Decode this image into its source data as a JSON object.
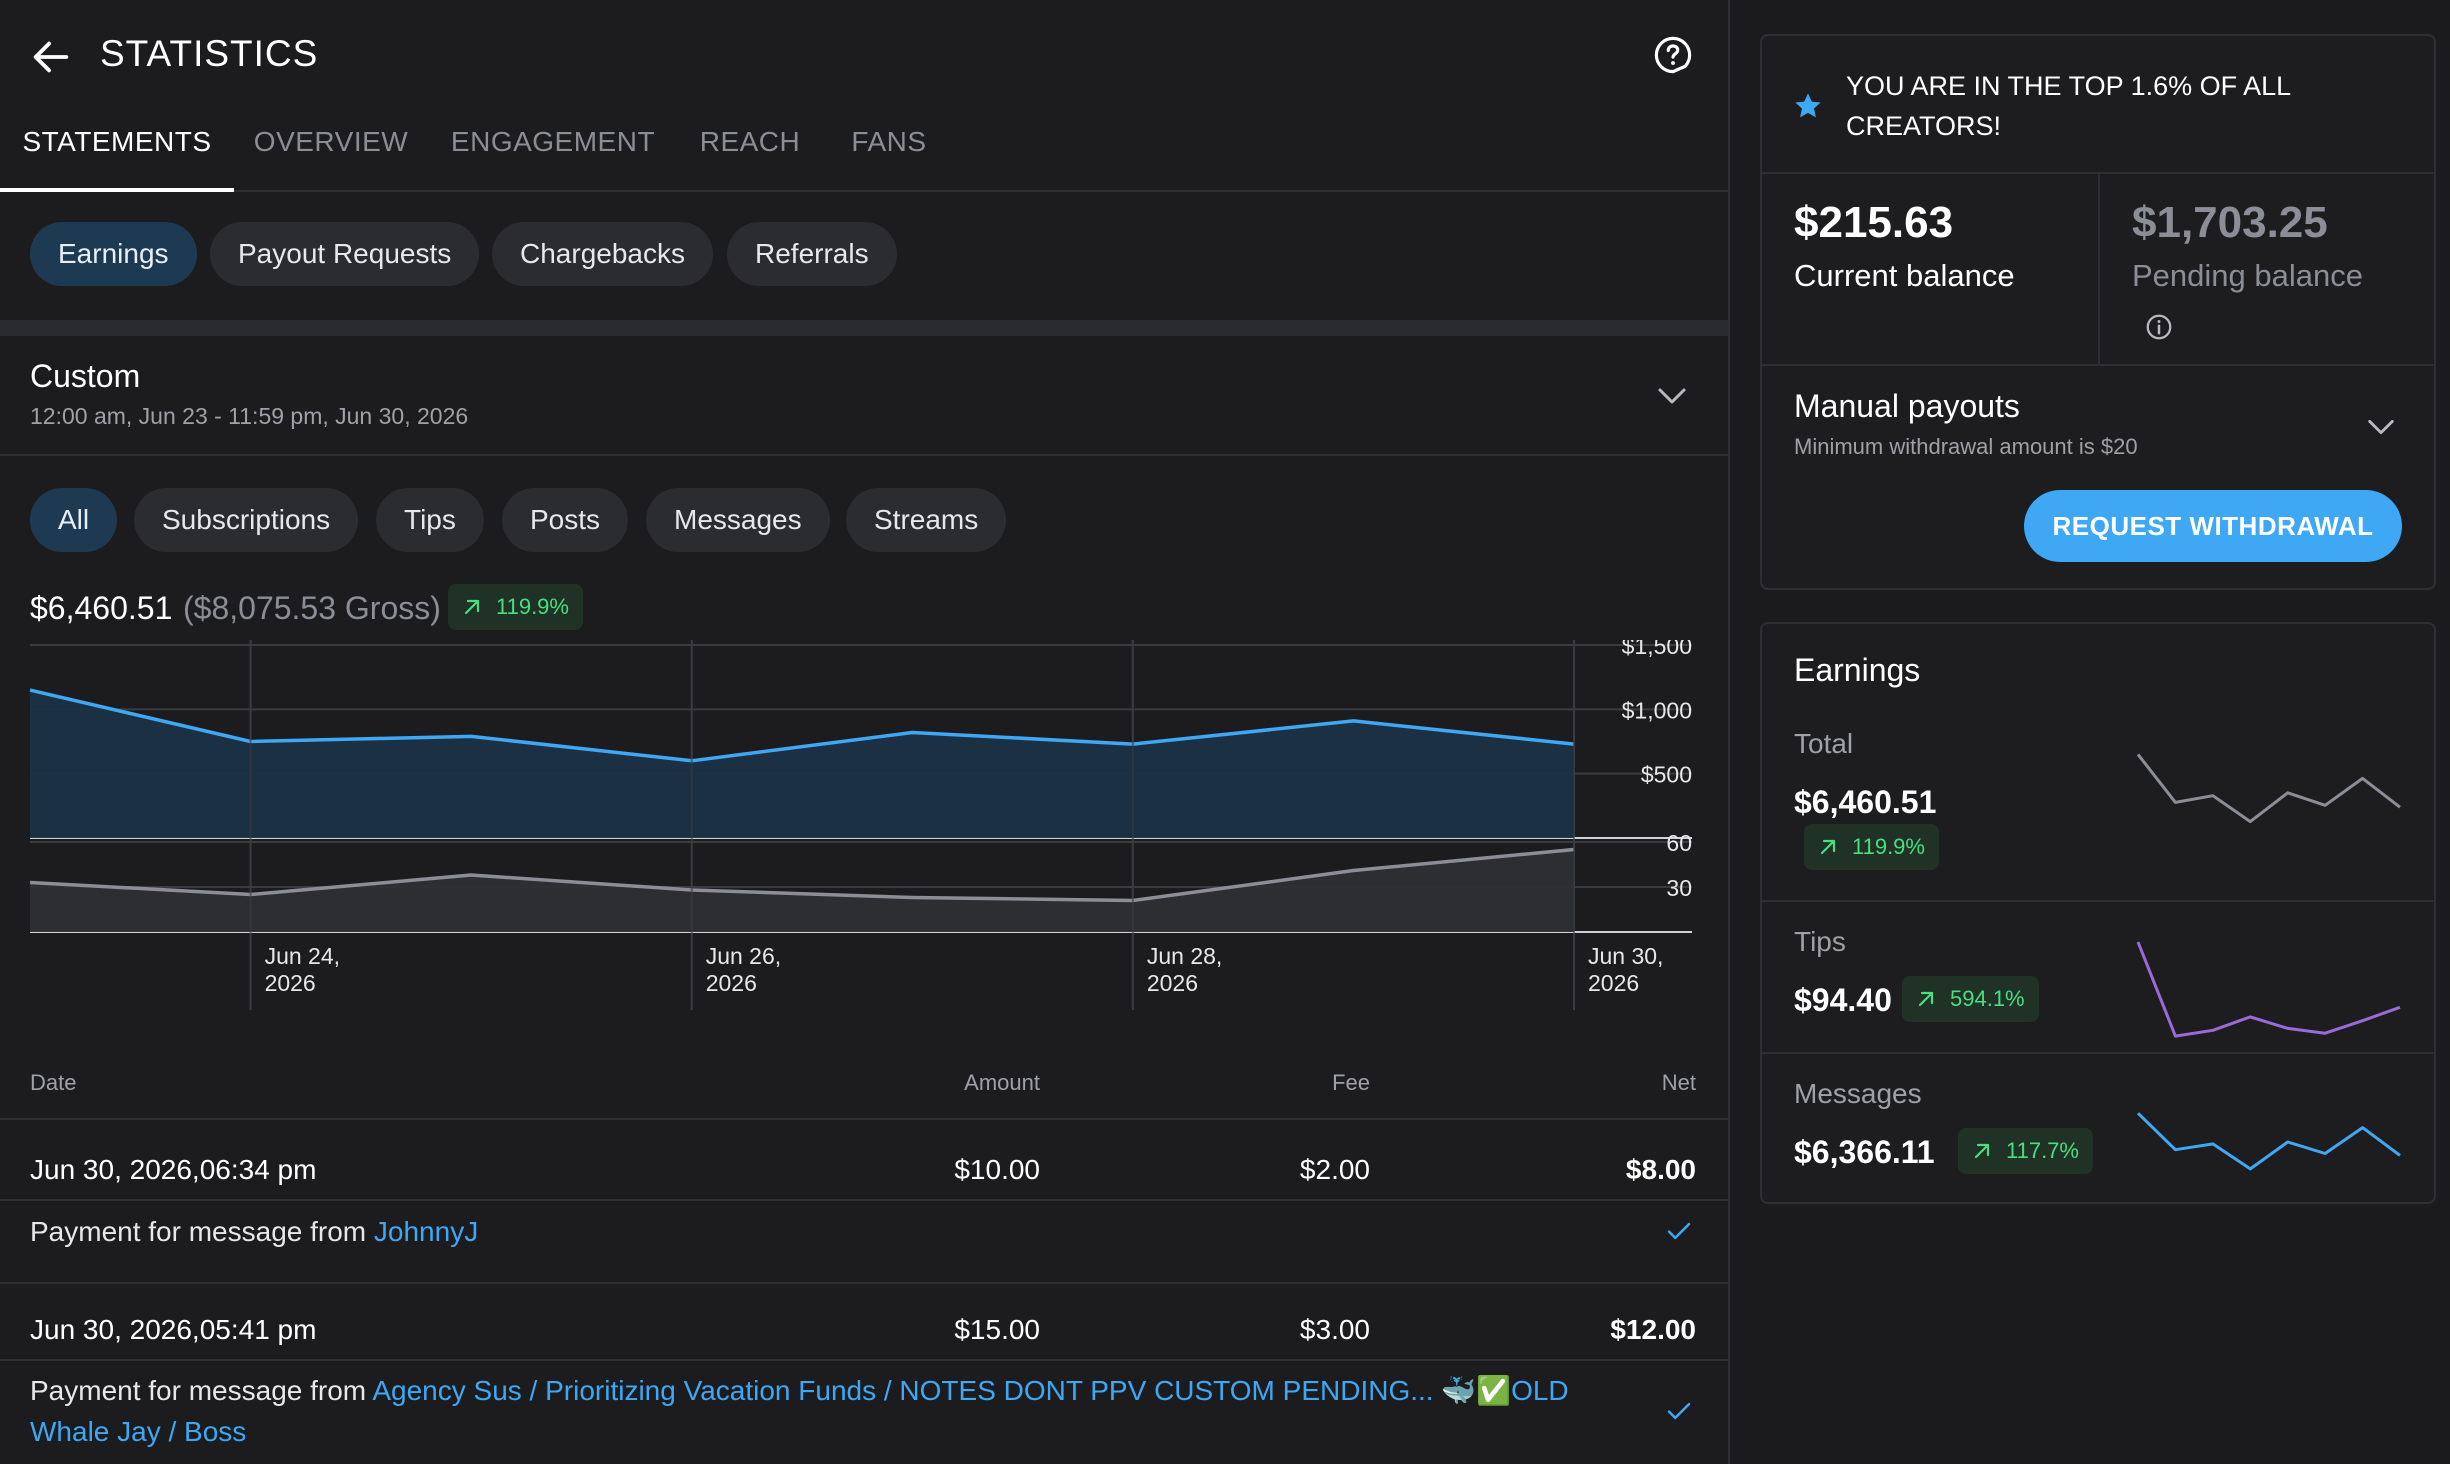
{
  "header": {
    "title": "STATISTICS"
  },
  "tabs": [
    {
      "label": "STATEMENTS",
      "active": true
    },
    {
      "label": "OVERVIEW"
    },
    {
      "label": "ENGAGEMENT"
    },
    {
      "label": "REACH"
    },
    {
      "label": "FANS"
    }
  ],
  "statement_pills": [
    {
      "label": "Earnings",
      "active": true
    },
    {
      "label": "Payout Requests"
    },
    {
      "label": "Chargebacks"
    },
    {
      "label": "Referrals"
    }
  ],
  "range": {
    "title": "Custom",
    "subtitle": "12:00 am, Jun 23 - 11:59 pm, Jun 30, 2026"
  },
  "filter_pills": [
    {
      "label": "All",
      "active": true
    },
    {
      "label": "Subscriptions"
    },
    {
      "label": "Tips"
    },
    {
      "label": "Posts"
    },
    {
      "label": "Messages"
    },
    {
      "label": "Streams"
    }
  ],
  "summary": {
    "net": "$6,460.51",
    "gross": "($8,075.53 Gross)",
    "change": "119.9%"
  },
  "chart_data": {
    "type": "area",
    "x": [
      "Jun 23, 2026",
      "Jun 24, 2026",
      "Jun 25, 2026",
      "Jun 26, 2026",
      "Jun 27, 2026",
      "Jun 28, 2026",
      "Jun 29, 2026",
      "Jun 30, 2026"
    ],
    "x_tick_labels": [
      {
        "line1": "Jun 24,",
        "line2": "2026"
      },
      {
        "line1": "Jun 26,",
        "line2": "2026"
      },
      {
        "line1": "Jun 28,",
        "line2": "2026"
      },
      {
        "line1": "Jun 30,",
        "line2": "2026"
      }
    ],
    "panels": [
      {
        "name": "earnings",
        "values": [
          1150,
          750,
          790,
          600,
          820,
          730,
          910,
          730
        ],
        "ylim": [
          0,
          1500
        ],
        "yticks": [
          "$1,500",
          "$1,000",
          "$500"
        ],
        "ytick_values": [
          1500,
          1000,
          500
        ],
        "color": "#3ea8f5"
      },
      {
        "name": "count",
        "values": [
          33,
          25,
          38,
          28,
          23,
          21,
          41,
          55
        ],
        "ylim": [
          0,
          90
        ],
        "yticks": [
          "60",
          "30"
        ],
        "ytick_values": [
          60,
          30
        ],
        "color": "#8b8e96"
      }
    ],
    "grid": true
  },
  "table": {
    "headers": {
      "date": "Date",
      "amount": "Amount",
      "fee": "Fee",
      "net": "Net"
    },
    "rows": [
      {
        "date": "Jun 30, 2026,06:34 pm",
        "amount": "$10.00",
        "fee": "$2.00",
        "net": "$8.00",
        "desc_prefix": "Payment for message from ",
        "desc_link": "JohnnyJ"
      },
      {
        "date": "Jun 30, 2026,05:41 pm",
        "amount": "$15.00",
        "fee": "$3.00",
        "net": "$12.00",
        "desc_prefix": "Payment for message from ",
        "desc_link": "Agency Sus / Prioritizing Vacation Funds / NOTES DONT PPV CUSTOM PENDING... 🐳✅OLD Whale Jay / Boss"
      }
    ]
  },
  "sidebar": {
    "top_banner": "YOU ARE IN THE TOP 1.6% OF ALL CREATORS!",
    "current_balance": {
      "amount": "$215.63",
      "label": "Current balance"
    },
    "pending_balance": {
      "amount": "$1,703.25",
      "label": "Pending balance"
    },
    "manual_payouts": {
      "title": "Manual payouts",
      "subtitle": "Minimum withdrawal amount is $20"
    },
    "withdraw_button": "REQUEST WITHDRAWAL",
    "earnings": {
      "title": "Earnings",
      "items": [
        {
          "label": "Total",
          "value": "$6,460.51",
          "change": "119.9%",
          "spark": [
            0.85,
            0.35,
            0.42,
            0.15,
            0.45,
            0.32,
            0.6,
            0.3
          ],
          "color": "#8b8e96"
        },
        {
          "label": "Tips",
          "value": "$94.40",
          "change": "594.1%",
          "spark": [
            1.0,
            0.02,
            0.08,
            0.22,
            0.1,
            0.05,
            0.18,
            0.32
          ],
          "color": "#9a6ad8"
        },
        {
          "label": "Messages",
          "value": "$6,366.11",
          "change": "117.7%",
          "spark": [
            0.8,
            0.42,
            0.48,
            0.22,
            0.5,
            0.38,
            0.65,
            0.36
          ],
          "color": "#3ea8f5"
        }
      ]
    }
  }
}
